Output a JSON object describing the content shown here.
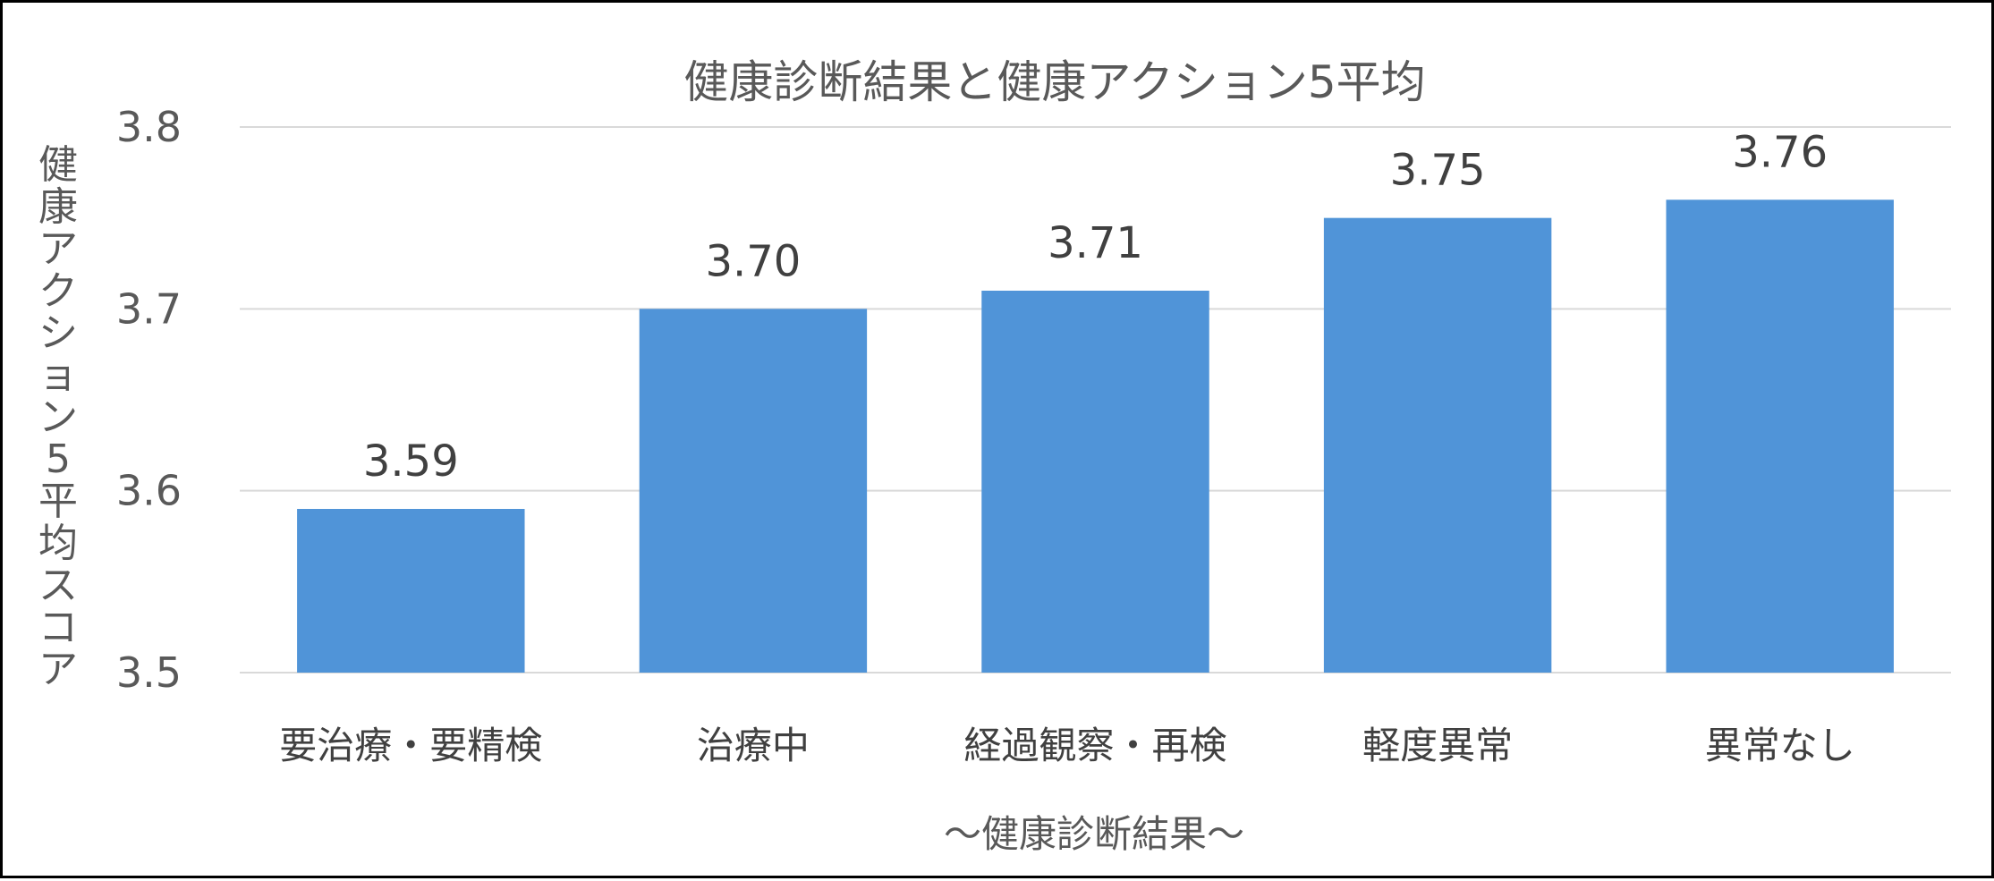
{
  "chart_data": {
    "type": "bar",
    "title": "健康診断結果と健康アクション5平均",
    "xlabel": "～健康診断結果～",
    "ylabel": "健康アクション5平均スコア",
    "categories": [
      "要治療・要精検",
      "治療中",
      "経過観察・再検",
      "軽度異常",
      "異常なし"
    ],
    "values": [
      3.59,
      3.7,
      3.71,
      3.75,
      3.76
    ],
    "data_labels": [
      "3.59",
      "3.70",
      "3.71",
      "3.75",
      "3.76"
    ],
    "ylim": [
      3.5,
      3.8
    ],
    "yticks": [
      "3.5",
      "3.6",
      "3.7",
      "3.8"
    ],
    "grid": true,
    "legend": "none",
    "bar_color": "#5094D8",
    "grid_color": "#D9D9D9"
  }
}
